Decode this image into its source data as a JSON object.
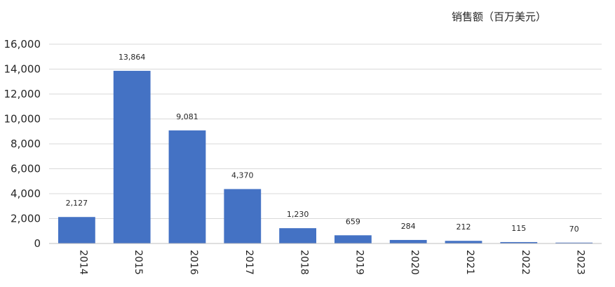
{
  "chart_data": {
    "type": "bar",
    "unit_label": "销售额（百万美元）",
    "categories": [
      "2014",
      "2015",
      "2016",
      "2017",
      "2018",
      "2019",
      "2020",
      "2021",
      "2022",
      "2023"
    ],
    "values": [
      2127,
      13864,
      9081,
      4370,
      1230,
      659,
      284,
      212,
      115,
      70
    ],
    "data_labels": [
      "2,127",
      "13,864",
      "9,081",
      "4,370",
      "1,230",
      "659",
      "284",
      "212",
      "115",
      "70"
    ],
    "yticks": [
      "0",
      "2,000",
      "4,000",
      "6,000",
      "8,000",
      "10,000",
      "12,000",
      "14,000",
      "16,000"
    ],
    "ylim": [
      0,
      16000
    ],
    "grid": true,
    "legend": "none",
    "bar_color": "#4472c4"
  }
}
